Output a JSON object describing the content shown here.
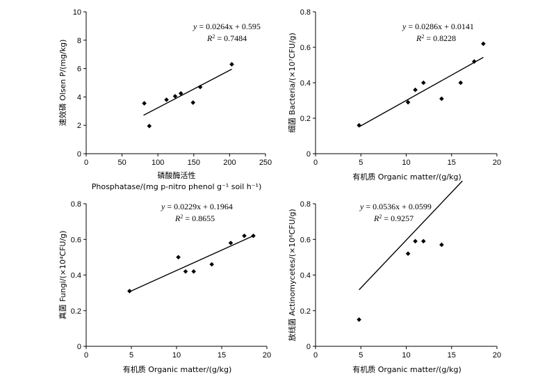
{
  "chart_data": [
    {
      "type": "scatter",
      "title": "",
      "xlabel": "Phosphatase/(mg p-nitro phenol g⁻¹ soil h⁻¹)",
      "xlabel_cn": "磷酸酶活性",
      "ylabel": "速效磷 Olsen P/(mg/kg)",
      "xlim": [
        0,
        250
      ],
      "ylim": [
        0,
        10
      ],
      "xticks": [
        "0",
        "50",
        "100",
        "150",
        "200",
        "250"
      ],
      "yticks": [
        "0",
        "2",
        "4",
        "6",
        "8",
        "10"
      ],
      "x": [
        81,
        88,
        112,
        124,
        132,
        149,
        159,
        203
      ],
      "y": [
        3.55,
        1.95,
        3.8,
        4.05,
        4.25,
        3.6,
        4.7,
        6.3
      ],
      "fit": {
        "slope": 0.0264,
        "intercept": 0.595,
        "x_range": [
          80,
          203
        ]
      },
      "equation": "= 0.0264x + 0.595",
      "r2": "= 0.7484"
    },
    {
      "type": "scatter",
      "title": "",
      "xlabel": "有机质 Organic matter/(g/kg)",
      "ylabel": "细菌 Bacteria/(×10⁷CFU/g)",
      "xlim": [
        0,
        20
      ],
      "ylim": [
        0,
        0.8
      ],
      "xticks": [
        "0",
        "5",
        "10",
        "15",
        "20"
      ],
      "yticks": [
        "0",
        "0.2",
        "0.4",
        "0.6",
        "0.8"
      ],
      "x": [
        4.8,
        10.2,
        11.0,
        11.9,
        13.9,
        16.0,
        17.5,
        18.5
      ],
      "y": [
        0.16,
        0.29,
        0.36,
        0.4,
        0.31,
        0.4,
        0.52,
        0.62
      ],
      "fit": {
        "slope": 0.0286,
        "intercept": 0.0141,
        "x_range": [
          4.8,
          18.5
        ]
      },
      "equation": "= 0.0286x + 0.0141",
      "r2": "= 0.8228"
    },
    {
      "type": "scatter",
      "title": "",
      "xlabel": "有机质 Organic matter/(g/kg)",
      "ylabel": "真菌 Fungi/(×10⁴CFU/g)",
      "xlim": [
        0,
        20
      ],
      "ylim": [
        0,
        0.8
      ],
      "xticks": [
        "0",
        "5",
        "10",
        "15",
        "20"
      ],
      "yticks": [
        "0",
        "0.2",
        "0.4",
        "0.6",
        "0.8"
      ],
      "x": [
        4.8,
        10.2,
        11.0,
        11.9,
        13.9,
        16.0,
        17.5,
        18.5
      ],
      "y": [
        0.31,
        0.5,
        0.42,
        0.42,
        0.46,
        0.58,
        0.62,
        0.62
      ],
      "fit": {
        "slope": 0.0229,
        "intercept": 0.1964,
        "x_range": [
          4.8,
          18.5
        ]
      },
      "equation": "= 0.0229x + 0.1964",
      "r2": "= 0.8655"
    },
    {
      "type": "scatter",
      "title": "",
      "xlabel": "有机质 Organic matter/(g/kg)",
      "ylabel": "放线菌 Actinomycetes/(×10⁶CFU/g)",
      "xlim": [
        0,
        20
      ],
      "ylim": [
        0,
        0.8
      ],
      "xticks": [
        "0",
        "5",
        "10",
        "15",
        "20"
      ],
      "yticks": [
        "0",
        "0.2",
        "0.4",
        "0.6",
        "0.8"
      ],
      "x": [
        4.8,
        10.2,
        11.0,
        11.9,
        13.9
      ],
      "y": [
        0.15,
        0.52,
        0.59,
        0.59,
        0.57
      ],
      "fit": {
        "slope": 0.0536,
        "intercept": 0.0599,
        "x_range": [
          4.8,
          16.2
        ]
      },
      "equation": "= 0.0536x + 0.0599",
      "r2": "= 0.9257"
    }
  ]
}
